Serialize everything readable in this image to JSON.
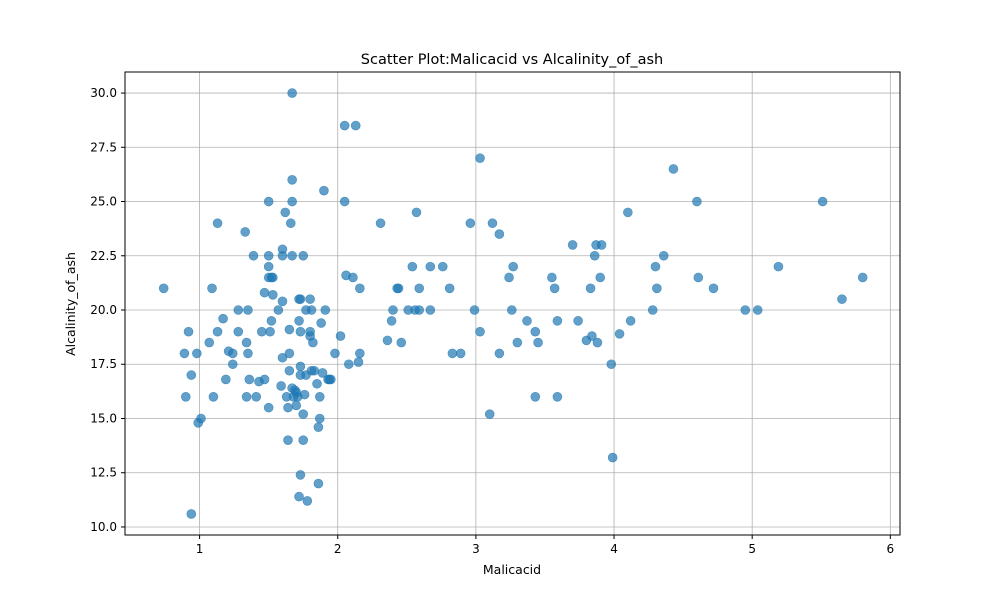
{
  "chart_data": {
    "type": "scatter",
    "title": "Scatter Plot:Malicacid vs Alcalinity_of_ash",
    "xlabel": "Malicacid",
    "ylabel": "Alcalinity_of_ash",
    "xlim": [
      0.46,
      6.07
    ],
    "ylim": [
      9.63,
      30.97
    ],
    "xticks": [
      1,
      2,
      3,
      4,
      5,
      6
    ],
    "xtick_labels": [
      "1",
      "2",
      "3",
      "4",
      "5",
      "6"
    ],
    "yticks": [
      10.0,
      12.5,
      15.0,
      17.5,
      20.0,
      22.5,
      25.0,
      27.5,
      30.0
    ],
    "ytick_labels": [
      "10.0",
      "12.5",
      "15.0",
      "17.5",
      "20.0",
      "22.5",
      "25.0",
      "27.5",
      "30.0"
    ],
    "grid": true,
    "color": "#1f77b4",
    "alpha": 0.7,
    "points": [
      [
        0.74,
        21.0
      ],
      [
        0.89,
        18.0
      ],
      [
        0.9,
        16.0
      ],
      [
        0.92,
        19.0
      ],
      [
        0.94,
        17.0
      ],
      [
        0.94,
        10.6
      ],
      [
        0.98,
        18.0
      ],
      [
        0.99,
        14.8
      ],
      [
        1.01,
        15.0
      ],
      [
        1.07,
        18.5
      ],
      [
        1.09,
        21.0
      ],
      [
        1.1,
        16.0
      ],
      [
        1.13,
        19.0
      ],
      [
        1.13,
        24.0
      ],
      [
        1.17,
        19.6
      ],
      [
        1.19,
        16.8
      ],
      [
        1.21,
        18.1
      ],
      [
        1.24,
        17.5
      ],
      [
        1.24,
        18.0
      ],
      [
        1.28,
        19.0
      ],
      [
        1.28,
        20.0
      ],
      [
        1.33,
        23.6
      ],
      [
        1.34,
        16.0
      ],
      [
        1.34,
        18.5
      ],
      [
        1.35,
        18.0
      ],
      [
        1.35,
        20.0
      ],
      [
        1.36,
        16.8
      ],
      [
        1.39,
        22.5
      ],
      [
        1.41,
        16.0
      ],
      [
        1.43,
        16.7
      ],
      [
        1.45,
        19.0
      ],
      [
        1.47,
        20.8
      ],
      [
        1.47,
        16.8
      ],
      [
        1.5,
        15.5
      ],
      [
        1.5,
        22.5
      ],
      [
        1.5,
        21.5
      ],
      [
        1.5,
        22.0
      ],
      [
        1.5,
        25.0
      ],
      [
        1.51,
        19.0
      ],
      [
        1.52,
        21.5
      ],
      [
        1.52,
        19.5
      ],
      [
        1.53,
        20.7
      ],
      [
        1.53,
        21.5
      ],
      [
        1.57,
        20.0
      ],
      [
        1.59,
        16.5
      ],
      [
        1.6,
        17.8
      ],
      [
        1.6,
        20.4
      ],
      [
        1.6,
        22.5
      ],
      [
        1.6,
        22.8
      ],
      [
        1.62,
        24.5
      ],
      [
        1.63,
        16.0
      ],
      [
        1.64,
        15.5
      ],
      [
        1.64,
        14.0
      ],
      [
        1.65,
        18.0
      ],
      [
        1.65,
        17.2
      ],
      [
        1.65,
        19.1
      ],
      [
        1.66,
        24.0
      ],
      [
        1.67,
        22.5
      ],
      [
        1.67,
        30.0
      ],
      [
        1.67,
        26.0
      ],
      [
        1.67,
        25.0
      ],
      [
        1.67,
        16.4
      ],
      [
        1.68,
        16.0
      ],
      [
        1.69,
        16.3
      ],
      [
        1.7,
        16.2
      ],
      [
        1.7,
        15.6
      ],
      [
        1.71,
        16.0
      ],
      [
        1.72,
        11.4
      ],
      [
        1.72,
        19.5
      ],
      [
        1.72,
        20.5
      ],
      [
        1.73,
        17.0
      ],
      [
        1.73,
        12.4
      ],
      [
        1.73,
        20.5
      ],
      [
        1.73,
        19.0
      ],
      [
        1.73,
        17.4
      ],
      [
        1.75,
        14.0
      ],
      [
        1.75,
        15.2
      ],
      [
        1.75,
        22.5
      ],
      [
        1.76,
        16.1
      ],
      [
        1.77,
        20.0
      ],
      [
        1.77,
        17.0
      ],
      [
        1.78,
        11.2
      ],
      [
        1.8,
        18.8
      ],
      [
        1.8,
        20.5
      ],
      [
        1.8,
        19.0
      ],
      [
        1.81,
        17.2
      ],
      [
        1.81,
        20.0
      ],
      [
        1.82,
        18.5
      ],
      [
        1.83,
        17.2
      ],
      [
        1.85,
        16.6
      ],
      [
        1.86,
        14.6
      ],
      [
        1.86,
        12.0
      ],
      [
        1.87,
        16.0
      ],
      [
        1.87,
        15.0
      ],
      [
        1.88,
        19.4
      ],
      [
        1.89,
        17.1
      ],
      [
        1.9,
        25.5
      ],
      [
        1.91,
        20.0
      ],
      [
        1.93,
        16.8
      ],
      [
        1.94,
        16.8
      ],
      [
        1.95,
        16.8
      ],
      [
        1.98,
        18.0
      ],
      [
        2.02,
        18.8
      ],
      [
        2.05,
        28.5
      ],
      [
        2.05,
        25.0
      ],
      [
        2.06,
        21.6
      ],
      [
        2.08,
        17.5
      ],
      [
        2.11,
        21.5
      ],
      [
        2.13,
        28.5
      ],
      [
        2.15,
        17.6
      ],
      [
        2.16,
        18.0
      ],
      [
        2.16,
        21.0
      ],
      [
        2.31,
        24.0
      ],
      [
        2.36,
        18.6
      ],
      [
        2.39,
        19.5
      ],
      [
        2.4,
        20.0
      ],
      [
        2.43,
        21.0
      ],
      [
        2.44,
        21.0
      ],
      [
        2.46,
        18.5
      ],
      [
        2.51,
        20.0
      ],
      [
        2.54,
        22.0
      ],
      [
        2.56,
        20.0
      ],
      [
        2.57,
        24.5
      ],
      [
        2.59,
        20.0
      ],
      [
        2.59,
        21.0
      ],
      [
        2.67,
        20.0
      ],
      [
        2.67,
        22.0
      ],
      [
        2.76,
        22.0
      ],
      [
        2.81,
        21.0
      ],
      [
        2.83,
        18.0
      ],
      [
        2.89,
        18.0
      ],
      [
        2.96,
        24.0
      ],
      [
        2.99,
        20.0
      ],
      [
        3.03,
        27.0
      ],
      [
        3.03,
        19.0
      ],
      [
        3.1,
        15.2
      ],
      [
        3.12,
        24.0
      ],
      [
        3.17,
        23.5
      ],
      [
        3.17,
        18.0
      ],
      [
        3.24,
        21.5
      ],
      [
        3.26,
        20.0
      ],
      [
        3.27,
        22.0
      ],
      [
        3.3,
        18.5
      ],
      [
        3.37,
        19.5
      ],
      [
        3.43,
        16.0
      ],
      [
        3.43,
        19.0
      ],
      [
        3.45,
        18.5
      ],
      [
        3.55,
        21.5
      ],
      [
        3.57,
        21.0
      ],
      [
        3.59,
        19.5
      ],
      [
        3.59,
        16.0
      ],
      [
        3.7,
        23.0
      ],
      [
        3.74,
        19.5
      ],
      [
        3.8,
        18.6
      ],
      [
        3.83,
        21.0
      ],
      [
        3.84,
        18.8
      ],
      [
        3.86,
        22.5
      ],
      [
        3.87,
        23.0
      ],
      [
        3.88,
        18.5
      ],
      [
        3.9,
        21.5
      ],
      [
        3.91,
        23.0
      ],
      [
        3.98,
        17.5
      ],
      [
        3.99,
        13.2
      ],
      [
        4.04,
        18.9
      ],
      [
        4.1,
        24.5
      ],
      [
        4.12,
        19.5
      ],
      [
        4.28,
        20.0
      ],
      [
        4.3,
        22.0
      ],
      [
        4.31,
        21.0
      ],
      [
        4.36,
        22.5
      ],
      [
        4.43,
        26.5
      ],
      [
        4.6,
        25.0
      ],
      [
        4.61,
        21.5
      ],
      [
        4.72,
        21.0
      ],
      [
        4.95,
        20.0
      ],
      [
        5.04,
        20.0
      ],
      [
        5.19,
        22.0
      ],
      [
        5.51,
        25.0
      ],
      [
        5.65,
        20.5
      ],
      [
        5.8,
        21.5
      ]
    ]
  }
}
